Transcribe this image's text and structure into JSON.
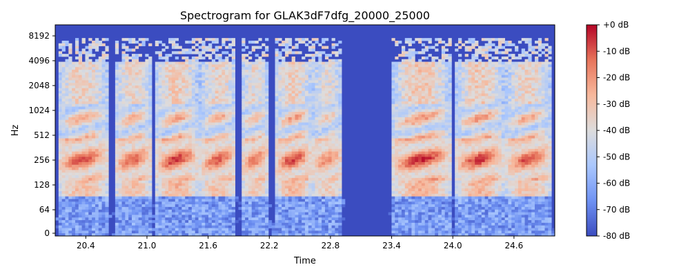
{
  "chart_data": {
    "type": "heatmap",
    "title": "Spectrogram for GLAK3dF7dfg_20000_25000",
    "xlabel": "Time",
    "ylabel": "Hz",
    "x_range": [
      20.1,
      25.0
    ],
    "x_ticks": [
      20.4,
      21.0,
      21.6,
      22.2,
      22.8,
      23.4,
      24.0,
      24.6
    ],
    "x_tick_labels": [
      "20.4",
      "21.0",
      "21.6",
      "22.2",
      "22.8",
      "23.4",
      "24.0",
      "24.6"
    ],
    "y_scale": "symlog",
    "y_range": [
      0,
      11025
    ],
    "y_ticks": [
      0,
      64,
      128,
      256,
      512,
      1024,
      2048,
      4096,
      8192
    ],
    "y_tick_labels": [
      "0",
      "64",
      "128",
      "256",
      "512",
      "1024",
      "2048",
      "4096",
      "8192"
    ],
    "colorbar": {
      "colormap": "coolwarm",
      "min_db": -80,
      "max_db": 0,
      "ticks": [
        0,
        -10,
        -20,
        -30,
        -40,
        -50,
        -60,
        -70,
        -80
      ],
      "tick_labels": [
        "+0 dB",
        "-10 dB",
        "-20 dB",
        "-30 dB",
        "-40 dB",
        "-50 dB",
        "-60 dB",
        "-70 dB",
        "-80 dB"
      ],
      "colors": [
        "#b40426",
        "#e7745b",
        "#f7b89c",
        "#dddcdc",
        "#aac7fd",
        "#6f92f3",
        "#3b4cc0"
      ]
    },
    "silent_interval": [
      22.95,
      23.38
    ],
    "voiced_segments": [
      {
        "start": 20.12,
        "end": 20.62,
        "intensity": 0.85
      },
      {
        "start": 20.68,
        "end": 21.05,
        "intensity": 0.8
      },
      {
        "start": 21.08,
        "end": 21.5,
        "intensity": 0.95
      },
      {
        "start": 21.52,
        "end": 21.88,
        "intensity": 0.8
      },
      {
        "start": 21.92,
        "end": 22.2,
        "intensity": 0.7
      },
      {
        "start": 22.25,
        "end": 22.62,
        "intensity": 0.9
      },
      {
        "start": 22.62,
        "end": 22.92,
        "intensity": 0.6
      },
      {
        "start": 23.4,
        "end": 23.98,
        "intensity": 1.0
      },
      {
        "start": 24.03,
        "end": 24.5,
        "intensity": 0.95
      },
      {
        "start": 24.52,
        "end": 24.96,
        "intensity": 0.85
      }
    ]
  }
}
